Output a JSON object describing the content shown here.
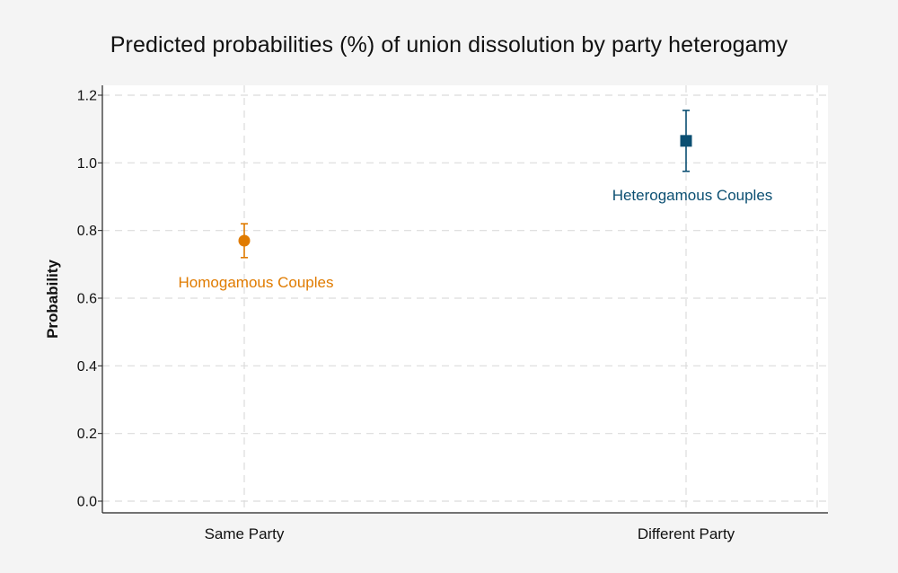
{
  "chart_data": {
    "type": "scatter",
    "title": "Predicted probabilities (%) of union dissolution by party heterogamy",
    "xlabel": "",
    "ylabel": "Probability",
    "categories": [
      "Same Party",
      "Different Party"
    ],
    "ylim": [
      0,
      1.2
    ],
    "yticks": [
      "0.0",
      "0.2",
      "0.4",
      "0.6",
      "0.8",
      "1.0",
      "1.2"
    ],
    "grid": true,
    "series": [
      {
        "name": "Homogamous Couples",
        "category": "Same Party",
        "value": 0.77,
        "ci_low": 0.72,
        "ci_high": 0.82,
        "marker": "circle",
        "color": "#e07b00"
      },
      {
        "name": "Heterogamous Couples",
        "category": "Different Party",
        "value": 1.065,
        "ci_low": 0.975,
        "ci_high": 1.155,
        "marker": "square",
        "color": "#0b4f72"
      }
    ]
  }
}
